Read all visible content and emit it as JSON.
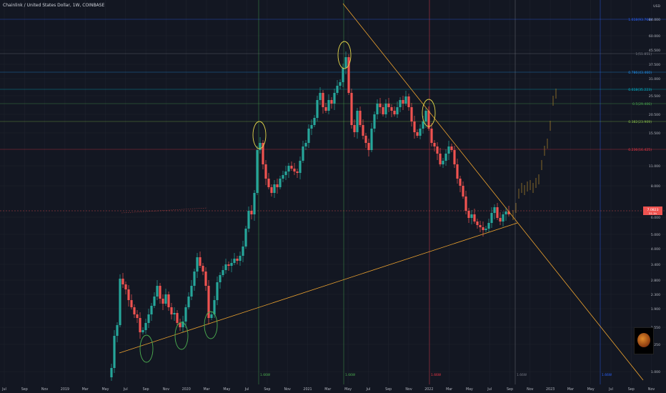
{
  "header": {
    "title": "Chainlink / United States Dollar, 1W, COINBASE"
  },
  "colors": {
    "background": "#131722",
    "up": "#26a69a",
    "down": "#ef5350",
    "trendline": "#f0a52f",
    "projection": "#a07a2a",
    "grid": "#1e222d"
  },
  "chart_data": {
    "type": "candlestick",
    "title": "Chainlink / United States Dollar, 1W, COINBASE",
    "price_axis_labels": [
      "USD",
      "84.000",
      "60.000",
      "45.500",
      "37.500",
      "31.000",
      "25.500",
      "20.500",
      "15.500",
      "11.000",
      "8.000",
      "6.000",
      "5.000",
      "4.000",
      "3.400",
      "2.800",
      "2.300",
      "1.900",
      "1.550",
      "1.250",
      "1.000"
    ],
    "time_axis_labels": [
      "Jul",
      "Sep",
      "Nov",
      "2019",
      "Mar",
      "May",
      "Jul",
      "Sep",
      "Nov",
      "2020",
      "Mar",
      "May",
      "Jul",
      "Sep",
      "Nov",
      "2021",
      "Mar",
      "May",
      "Jul",
      "Sep",
      "Nov",
      "2022",
      "Mar",
      "May",
      "Jul",
      "Sep",
      "Nov",
      "2023",
      "Mar",
      "May",
      "Jul",
      "Sep",
      "Nov"
    ],
    "fib_levels": [
      {
        "label": "1.618(93.766)",
        "color": "#2962ff"
      },
      {
        "label": "1(51.851)",
        "color": "#787b86"
      },
      {
        "label": "0.786(43.460)",
        "color": "#2196f3"
      },
      {
        "label": "0.618(35.223)",
        "color": "#00bcd4"
      },
      {
        "label": "0.5(29.406)",
        "color": "#4caf50"
      },
      {
        "label": "0.382(23.909)",
        "color": "#8bc34a"
      },
      {
        "label": "0.236(16.425)",
        "color": "#f23645"
      }
    ],
    "current_price": "7.0823",
    "current_price_sub": "51.1h",
    "vertical_line_labels": [
      "1.66W",
      "1.66W",
      "1.66W",
      "1.66W",
      "1.66W"
    ],
    "annotations": [
      "support trendline",
      "resistance trendline",
      "highlighted tops and bottoms"
    ],
    "log_scale": true,
    "grid": true
  }
}
